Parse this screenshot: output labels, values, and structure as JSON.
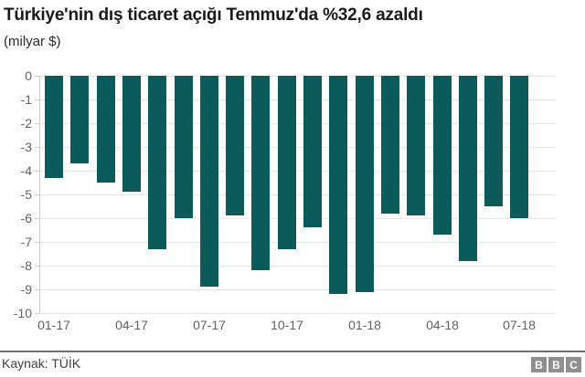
{
  "header": {
    "title": "Türkiye'nin dış ticaret açığı Temmuz'da %32,6 azaldı",
    "subtitle": "(milyar $)"
  },
  "chart_data": {
    "type": "bar",
    "title": "Türkiye'nin dış ticaret açığı Temmuz'da %32,6 azaldı",
    "subtitle": "(milyar $)",
    "unit": "milyar $",
    "categories": [
      "01-17",
      "02-17",
      "03-17",
      "04-17",
      "05-17",
      "06-17",
      "07-17",
      "08-17",
      "09-17",
      "10-17",
      "11-17",
      "12-17",
      "01-18",
      "02-18",
      "03-18",
      "04-18",
      "05-18",
      "06-18",
      "07-18"
    ],
    "values": [
      -4.3,
      -3.7,
      -4.5,
      -4.9,
      -7.3,
      -6.0,
      -8.9,
      -5.9,
      -8.2,
      -7.3,
      -6.4,
      -9.2,
      -9.1,
      -5.8,
      -5.9,
      -6.7,
      -7.8,
      -5.5,
      -6.0
    ],
    "bar_color": "#0c5b5b",
    "ylim": [
      -10,
      0
    ],
    "y_ticks": [
      0,
      -1,
      -2,
      -3,
      -4,
      -5,
      -6,
      -7,
      -8,
      -9,
      -10
    ],
    "x_tick_labels": [
      "01-17",
      "04-17",
      "07-17",
      "10-17",
      "01-18",
      "04-18",
      "07-18"
    ],
    "x_tick_indices": [
      0,
      3,
      6,
      9,
      12,
      15,
      18
    ],
    "grid": true,
    "legend": false,
    "gridline_color": "#e5e5e5",
    "axis_color": "#cccccc",
    "label_color": "#616161"
  },
  "footer": {
    "source": "Kaynak: TÜİK",
    "logo_letters": [
      "B",
      "B",
      "C"
    ]
  }
}
